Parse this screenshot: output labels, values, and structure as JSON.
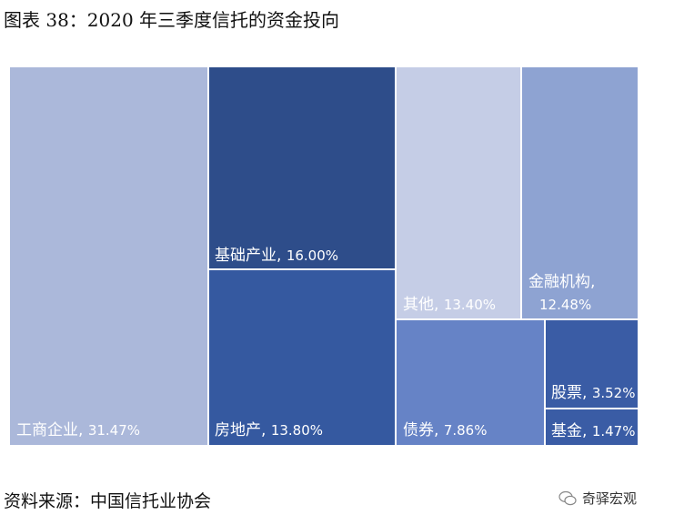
{
  "title": "图表 38：2020 年三季度信托的资金投向",
  "source": "资料来源：中国信托业协会",
  "watermark": "奇驿宏观",
  "chart_data": {
    "type": "treemap",
    "unit": "%",
    "items": [
      {
        "name": "工商企业",
        "label": "工商企业, 31.47%",
        "value": 31.47,
        "color": "#abb8da"
      },
      {
        "name": "基础产业",
        "label": "基础产业, 16.00%",
        "value": 16.0,
        "color": "#2e4d8a"
      },
      {
        "name": "房地产",
        "label": "房地产, 13.80%",
        "value": 13.8,
        "color": "#3559a0"
      },
      {
        "name": "其他",
        "label": "其他, 13.40%",
        "value": 13.4,
        "color": "#c5cde6"
      },
      {
        "name": "金融机构",
        "label": "金融机构, 12.48%",
        "value": 12.48,
        "color": "#8ea3d2"
      },
      {
        "name": "债券",
        "label": "债券, 7.86%",
        "value": 7.86,
        "color": "#6683c6"
      },
      {
        "name": "股票",
        "label": "股票, 3.52%",
        "value": 3.52,
        "color": "#3a5ca5"
      },
      {
        "name": "基金",
        "label": "基金, 1.47%",
        "value": 1.47,
        "color": "#3a5ca5"
      }
    ]
  }
}
